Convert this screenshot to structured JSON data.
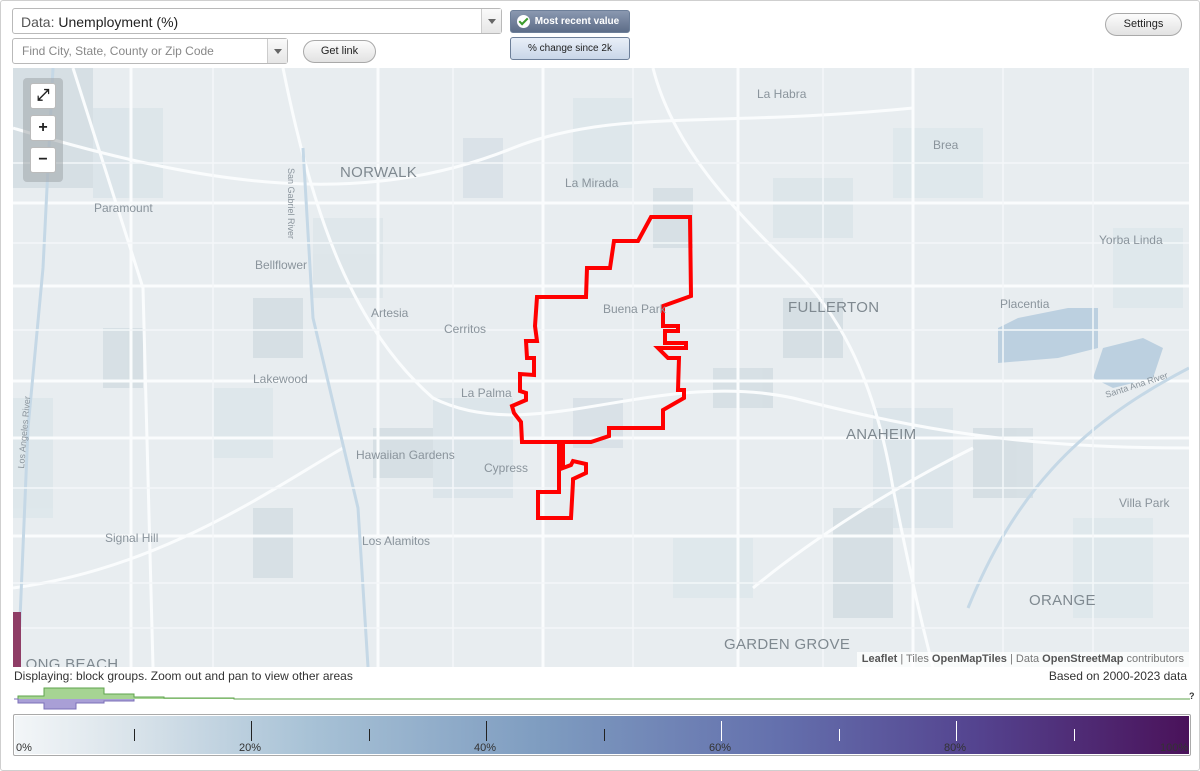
{
  "controls": {
    "data_prefix": "Data: ",
    "data_value": "Unemployment (%)",
    "search_placeholder": "Find City, State, County or Zip Code",
    "get_link_label": "Get link",
    "settings_label": "Settings",
    "toggle_recent_label": "Most recent value",
    "toggle_change_label": "% change since 2k",
    "toggle_recent_active": true
  },
  "map": {
    "zoom_fit_label": "⤢",
    "zoom_in_label": "+",
    "zoom_out_label": "−",
    "places": [
      {
        "name": "NORWALK",
        "size": "big"
      },
      {
        "name": "La Habra",
        "size": "small"
      },
      {
        "name": "Brea",
        "size": "small"
      },
      {
        "name": "La Mirada",
        "size": "small"
      },
      {
        "name": "Paramount",
        "size": "small"
      },
      {
        "name": "Bellflower",
        "size": "small"
      },
      {
        "name": "Yorba Linda",
        "size": "small"
      },
      {
        "name": "Artesia",
        "size": "small"
      },
      {
        "name": "Cerritos",
        "size": "small"
      },
      {
        "name": "Buena Park",
        "size": "small"
      },
      {
        "name": "FULLERTON",
        "size": "big"
      },
      {
        "name": "Placentia",
        "size": "small"
      },
      {
        "name": "Lakewood",
        "size": "small"
      },
      {
        "name": "La Palma",
        "size": "small"
      },
      {
        "name": "ANAHEIM",
        "size": "big"
      },
      {
        "name": "Hawaiian Gardens",
        "size": "small"
      },
      {
        "name": "Cypress",
        "size": "small"
      },
      {
        "name": "Villa Park",
        "size": "small"
      },
      {
        "name": "Signal Hill",
        "size": "small"
      },
      {
        "name": "Los Alamitos",
        "size": "small"
      },
      {
        "name": "ORANGE",
        "size": "big"
      },
      {
        "name": "GARDEN GROVE",
        "size": "big"
      },
      {
        "name": "LONG BEACH",
        "size": "big"
      }
    ],
    "road_labels": [
      "San Gabriel River",
      "Santa Ana River",
      "Los Angeles River",
      "Santa Ana River"
    ],
    "attribution": {
      "leaflet": "Leaflet",
      "tiles_prefix": " | Tiles ",
      "tiles": "OpenMapTiles",
      "data_prefix": " | Data ",
      "data": "OpenStreetMap",
      "suffix": " contributors"
    },
    "boundary_color": "#ff0000"
  },
  "status": {
    "displaying": "Displaying: block groups. Zoom out and pan to view other areas",
    "based_on": "Based on 2000-2023 data",
    "unknown_mark": "?"
  },
  "histogram": {
    "colors": {
      "top": "#7fbf6b",
      "bottom": "#9b8fcc"
    }
  },
  "legend": {
    "labels": [
      "0%",
      "20%",
      "40%",
      "60%",
      "80%",
      "100%"
    ],
    "min": 0,
    "max": 100,
    "colors": [
      "#f3f6f8",
      "#a8c2d6",
      "#7e9cc0",
      "#6470ad",
      "#54438f",
      "#4a125a"
    ]
  }
}
